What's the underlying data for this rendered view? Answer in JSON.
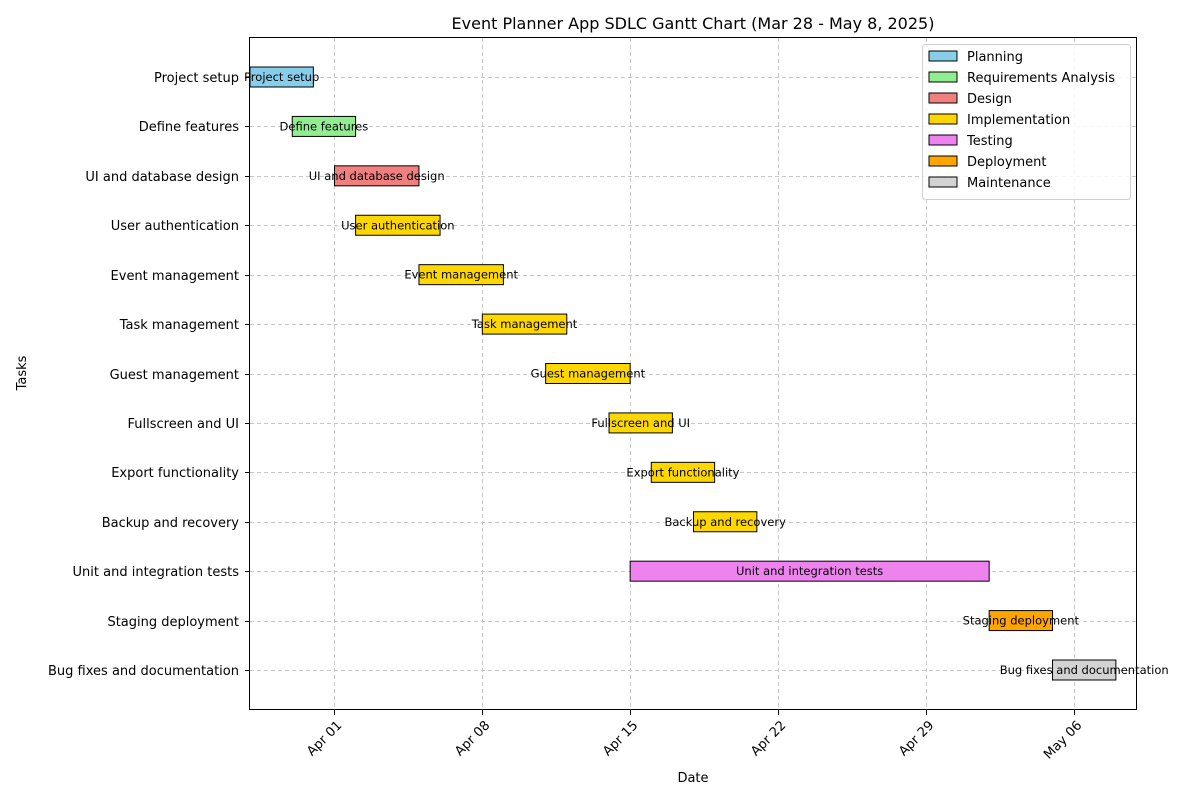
{
  "chart_data": {
    "type": "bar",
    "subtype": "gantt",
    "title": "Event Planner App SDLC Gantt Chart (Mar 28 - May 8, 2025)",
    "xlabel": "Date",
    "ylabel": "Tasks",
    "xlim": [
      "2025-03-28",
      "2025-05-09"
    ],
    "grid": true,
    "legend_position": "top-right",
    "x_ticks": [
      {
        "date": "2025-04-01",
        "label": "Apr 01"
      },
      {
        "date": "2025-04-08",
        "label": "Apr 08"
      },
      {
        "date": "2025-04-15",
        "label": "Apr 15"
      },
      {
        "date": "2025-04-22",
        "label": "Apr 22"
      },
      {
        "date": "2025-04-29",
        "label": "Apr 29"
      },
      {
        "date": "2025-05-06",
        "label": "May 06"
      }
    ],
    "phases": [
      {
        "name": "Planning",
        "color": "#87CEEB"
      },
      {
        "name": "Requirements Analysis",
        "color": "#90EE90"
      },
      {
        "name": "Design",
        "color": "#F08080"
      },
      {
        "name": "Implementation",
        "color": "#FFD700"
      },
      {
        "name": "Testing",
        "color": "#EE82EE"
      },
      {
        "name": "Deployment",
        "color": "#FFA500"
      },
      {
        "name": "Maintenance",
        "color": "#D3D3D3"
      }
    ],
    "tasks": [
      {
        "name": "Project setup",
        "phase": "Planning",
        "start": "2025-03-28",
        "end": "2025-03-31"
      },
      {
        "name": "Define features",
        "phase": "Requirements Analysis",
        "start": "2025-03-30",
        "end": "2025-04-02"
      },
      {
        "name": "UI and database design",
        "phase": "Design",
        "start": "2025-04-01",
        "end": "2025-04-05"
      },
      {
        "name": "User authentication",
        "phase": "Implementation",
        "start": "2025-04-02",
        "end": "2025-04-06"
      },
      {
        "name": "Event management",
        "phase": "Implementation",
        "start": "2025-04-05",
        "end": "2025-04-09"
      },
      {
        "name": "Task management",
        "phase": "Implementation",
        "start": "2025-04-08",
        "end": "2025-04-12"
      },
      {
        "name": "Guest management",
        "phase": "Implementation",
        "start": "2025-04-11",
        "end": "2025-04-15"
      },
      {
        "name": "Fullscreen and UI",
        "phase": "Implementation",
        "start": "2025-04-14",
        "end": "2025-04-17"
      },
      {
        "name": "Export functionality",
        "phase": "Implementation",
        "start": "2025-04-16",
        "end": "2025-04-19"
      },
      {
        "name": "Backup and recovery",
        "phase": "Implementation",
        "start": "2025-04-18",
        "end": "2025-04-21"
      },
      {
        "name": "Unit and integration tests",
        "phase": "Testing",
        "start": "2025-04-15",
        "end": "2025-05-02"
      },
      {
        "name": "Staging deployment",
        "phase": "Deployment",
        "start": "2025-05-02",
        "end": "2025-05-05"
      },
      {
        "name": "Bug fixes and documentation",
        "phase": "Maintenance",
        "start": "2025-05-05",
        "end": "2025-05-08"
      }
    ]
  }
}
